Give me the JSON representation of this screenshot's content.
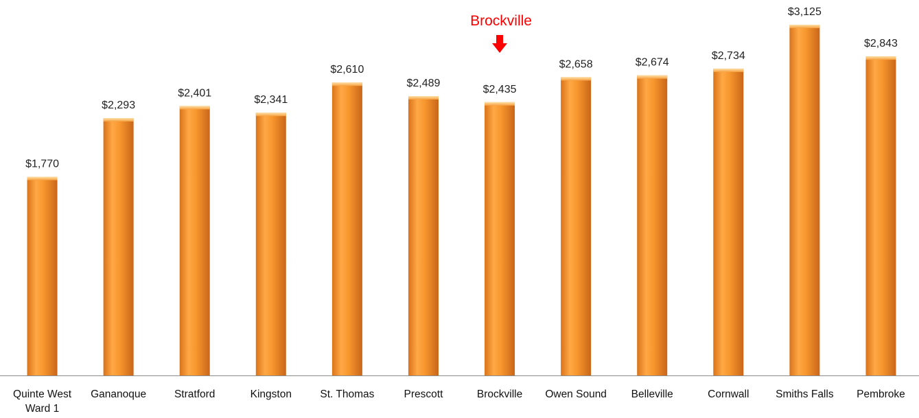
{
  "chart_data": {
    "type": "bar",
    "title": "",
    "xlabel": "",
    "ylabel": "",
    "ylim": [
      0,
      3200
    ],
    "grid": false,
    "legend": "none",
    "categories": [
      [
        "Quinte West",
        "Ward 1"
      ],
      [
        "Gananoque"
      ],
      [
        "Stratford"
      ],
      [
        "Kingston"
      ],
      [
        "St. Thomas"
      ],
      [
        "Prescott"
      ],
      [
        "Brockville"
      ],
      [
        "Owen Sound"
      ],
      [
        "Belleville"
      ],
      [
        "Cornwall"
      ],
      [
        "Smiths Falls"
      ],
      [
        "Pembroke"
      ]
    ],
    "values": [
      1770,
      2293,
      2401,
      2341,
      2610,
      2489,
      2435,
      2658,
      2674,
      2734,
      3125,
      2843
    ],
    "value_labels": [
      "$1,770",
      "$2,293",
      "$2,401",
      "$2,341",
      "$2,610",
      "$2,489",
      "$2,435",
      "$2,658",
      "$2,674",
      "$2,734",
      "$3,125",
      "$2,843"
    ],
    "annotation": {
      "text": "Brockville",
      "category_index": 6,
      "icon": "down-arrow-icon"
    },
    "colors": {
      "bar": "#f7962d",
      "bar_light": "#ffbb6a",
      "bar_dark": "#d9731a",
      "axis": "#8c8c8c",
      "annotation": "#ff0000"
    }
  }
}
